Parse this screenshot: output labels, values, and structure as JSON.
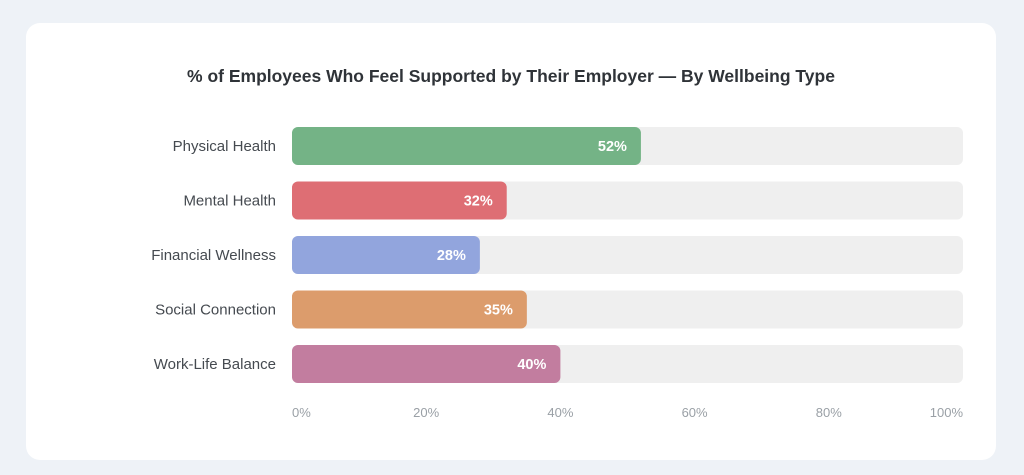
{
  "chart_data": {
    "type": "bar",
    "orientation": "horizontal",
    "title": "% of Employees Who Feel Supported by Their Employer — By Wellbeing Type",
    "categories": [
      "Physical Health",
      "Mental Health",
      "Financial Wellness",
      "Social Connection",
      "Work-Life Balance"
    ],
    "values": [
      52,
      32,
      28,
      35,
      40
    ],
    "value_labels": [
      "52%",
      "32%",
      "28%",
      "35%",
      "40%"
    ],
    "colors": [
      "#74b386",
      "#de6e74",
      "#92a5dd",
      "#dc9c6c",
      "#c27d9f"
    ],
    "track_color": "#efefef",
    "xlim": [
      0,
      100
    ],
    "x_ticks": [
      0,
      20,
      40,
      60,
      80,
      100
    ],
    "x_tick_labels": [
      "0%",
      "20%",
      "40%",
      "60%",
      "80%",
      "100%"
    ],
    "xlabel": "",
    "ylabel": "",
    "grid": false,
    "legend": "none"
  }
}
